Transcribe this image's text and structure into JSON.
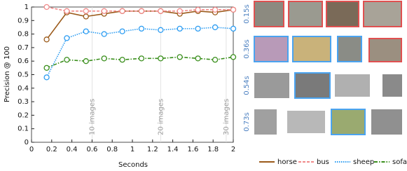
{
  "chart_data": {
    "type": "line",
    "x_label": "Seconds",
    "y_label": "Precision @ 100",
    "x": [
      0.15,
      0.35,
      0.54,
      0.72,
      0.9,
      1.09,
      1.28,
      1.47,
      1.65,
      1.82,
      2.0
    ],
    "series": [
      {
        "name": "horse",
        "color": "#9b5a1a",
        "dash": "solid",
        "values": [
          0.76,
          0.96,
          0.93,
          0.95,
          0.97,
          0.97,
          0.97,
          0.95,
          0.97,
          0.96,
          0.98
        ]
      },
      {
        "name": "bus",
        "color": "#f08a8a",
        "dash": "dashed",
        "values": [
          1.0,
          0.97,
          0.97,
          0.97,
          0.97,
          0.97,
          0.97,
          0.97,
          0.98,
          0.98,
          0.98
        ]
      },
      {
        "name": "sheep",
        "color": "#2b9cf2",
        "dash": "dotted",
        "values": [
          0.48,
          0.77,
          0.82,
          0.8,
          0.82,
          0.84,
          0.83,
          0.84,
          0.84,
          0.85,
          0.84
        ]
      },
      {
        "name": "sofa",
        "color": "#3a8f1c",
        "dash": "dashdot",
        "values": [
          0.55,
          0.61,
          0.6,
          0.62,
          0.61,
          0.62,
          0.62,
          0.63,
          0.62,
          0.61,
          0.63
        ]
      }
    ],
    "xlim": [
      0,
      2
    ],
    "ylim": [
      0,
      1
    ],
    "xticks": [
      0,
      0.2,
      0.4,
      0.6,
      0.8,
      1,
      1.2,
      1.4,
      1.6,
      1.8,
      2
    ],
    "yticks": [
      0,
      0.1,
      0.2,
      0.3,
      0.4,
      0.5,
      0.6,
      0.7,
      0.8,
      0.9,
      1
    ],
    "annotations": [
      {
        "x": 0.6,
        "text": "10 images"
      },
      {
        "x": 1.28,
        "text": "20 images"
      },
      {
        "x": 1.93,
        "text": "30 images"
      }
    ],
    "grid": false,
    "legend": "bottom-right"
  },
  "image_panel": {
    "rows": [
      {
        "time": "0.15s"
      },
      {
        "time": "0.36s"
      },
      {
        "time": "0.54s"
      },
      {
        "time": "0.73s"
      }
    ]
  }
}
